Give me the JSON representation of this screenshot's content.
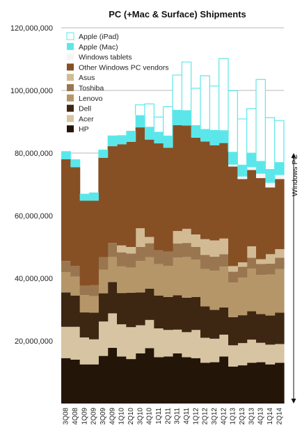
{
  "chart_data": {
    "type": "area",
    "title": "PC (+Mac & Surface) Shipments",
    "xlabel": "",
    "ylabel": "",
    "ylim": [
      0,
      120000000
    ],
    "yticks": [
      20000000,
      40000000,
      60000000,
      80000000,
      100000000,
      120000000
    ],
    "ytick_labels": [
      "20,000,000",
      "40,000,000",
      "60,000,000",
      "80,000,000",
      "100,000,000",
      "120,000,000"
    ],
    "grid": true,
    "legend_position": "top-left",
    "categories": [
      "3Q08",
      "4Q08",
      "1Q09",
      "2Q09",
      "3Q09",
      "4Q09",
      "1Q10",
      "2Q10",
      "3Q10",
      "4Q10",
      "1Q11",
      "2Q11",
      "3Q11",
      "4Q11",
      "1Q12",
      "2Q12",
      "3Q12",
      "4Q12",
      "1Q13",
      "2Q13",
      "3Q13",
      "4Q13",
      "1Q14",
      "2Q14"
    ],
    "xtick_labels": [
      "3Q08",
      "4Q08",
      "1Q09",
      "2Q09",
      "3Q09",
      "4Q09",
      "1Q10",
      "2Q10",
      "3Q10",
      "4Q10",
      "1Q11",
      "2Q11",
      "3Q11",
      "4Q11",
      "1Q12",
      "2Q12",
      "3Q12",
      "4Q12",
      "1Q13",
      "2Q13",
      "3Q13",
      "4Q13",
      "1Q14",
      "2Q14"
    ],
    "series": [
      {
        "name": "HP",
        "color": "#241509",
        "values": [
          14500000,
          14000000,
          12500000,
          12500000,
          15200000,
          17800000,
          15000000,
          14200000,
          16000000,
          17700000,
          14800000,
          15000000,
          16000000,
          14800000,
          14500000,
          13000000,
          13200000,
          15000000,
          11800000,
          12200000,
          13000000,
          13200000,
          12500000,
          13000000
        ]
      },
      {
        "name": "Acer",
        "color": "#d7c4a2",
        "values": [
          10000000,
          10500000,
          8600000,
          8000000,
          11000000,
          11000000,
          10300000,
          10200000,
          9000000,
          9000000,
          9200000,
          8500000,
          7600000,
          8000000,
          9000000,
          8000000,
          7500000,
          7000000,
          6800000,
          7100000,
          7400000,
          6200000,
          6300000,
          6000000
        ]
      },
      {
        "name": "Dell",
        "color": "#3d2713",
        "values": [
          11000000,
          10000000,
          8000000,
          8500000,
          9000000,
          10000000,
          10000000,
          11000000,
          10500000,
          10000000,
          10500000,
          10500000,
          11000000,
          11000000,
          10500000,
          10000000,
          9200000,
          8700000,
          9000000,
          8900000,
          9100000,
          9200000,
          9300000,
          10000000
        ]
      },
      {
        "name": "Lenovo",
        "color": "#b49669",
        "values": [
          6500000,
          6000000,
          5500000,
          5300000,
          7500000,
          8000000,
          8500000,
          8000000,
          10000000,
          10000000,
          10000000,
          10000000,
          12000000,
          13000000,
          12000000,
          12000000,
          12500000,
          13000000,
          11000000,
          12000000,
          13600000,
          12500000,
          13100000,
          14000000
        ]
      },
      {
        "name": "Toshiba",
        "color": "#9a7650",
        "values": [
          3500000,
          3500000,
          3000000,
          3500000,
          4000000,
          4500000,
          4500000,
          4500000,
          4500000,
          4500000,
          4500000,
          4500000,
          4500000,
          4500000,
          4000000,
          4500000,
          4500000,
          4000000,
          3500000,
          3500000,
          3500000,
          3500000,
          3500000,
          3600000
        ]
      },
      {
        "name": "Asus",
        "color": "#d2bb94",
        "values": [
          0,
          0,
          0,
          0,
          0,
          0,
          2200000,
          2100000,
          6000000,
          2000000,
          0,
          0,
          4000000,
          4500000,
          4000000,
          5000000,
          5200000,
          5000000,
          1800000,
          1400000,
          3600000,
          1500000,
          3000000,
          2700000
        ]
      },
      {
        "name": "Other Windows PC vendors",
        "color": "#865024",
        "values": [
          32500000,
          31500000,
          27200000,
          27000000,
          31800000,
          30900000,
          32300000,
          33600000,
          32200000,
          31100000,
          34100000,
          33200000,
          33800000,
          33000000,
          30900000,
          31200000,
          30400000,
          30500000,
          31800000,
          26600000,
          24400000,
          25900000,
          21300000,
          22400000
        ]
      },
      {
        "name": "Windows tablets",
        "color": "#f5f5f5",
        "values": [
          0,
          0,
          0,
          0,
          0,
          0,
          0,
          0,
          0,
          0,
          0,
          0,
          0,
          0,
          0,
          0,
          0,
          0,
          600000,
          800000,
          900000,
          1400000,
          1500000,
          1300000
        ]
      },
      {
        "name": "Apple (Mac)",
        "color": "#5be7ea",
        "values": [
          2600000,
          2500000,
          2200000,
          2600000,
          2600000,
          3400000,
          2900000,
          3500000,
          3900000,
          4100000,
          3700000,
          3900000,
          4900000,
          4900000,
          4000000,
          4000000,
          4900000,
          4100000,
          4100000,
          3800000,
          4600000,
          4100000,
          4400000,
          4100000
        ]
      },
      {
        "name": "Apple (iPad)",
        "color": "#ffffff",
        "values": [
          0,
          0,
          0,
          0,
          0,
          0,
          0,
          0,
          3300000,
          7300000,
          4700000,
          9200000,
          11100000,
          15400000,
          11800000,
          17000000,
          14000000,
          22900000,
          19500000,
          14600000,
          14100000,
          26000000,
          16400000,
          13300000
        ]
      }
    ],
    "annotations": [
      {
        "text": "Windows PC",
        "kind": "bracket",
        "span_from": 0,
        "span_to": 80000000
      }
    ]
  }
}
